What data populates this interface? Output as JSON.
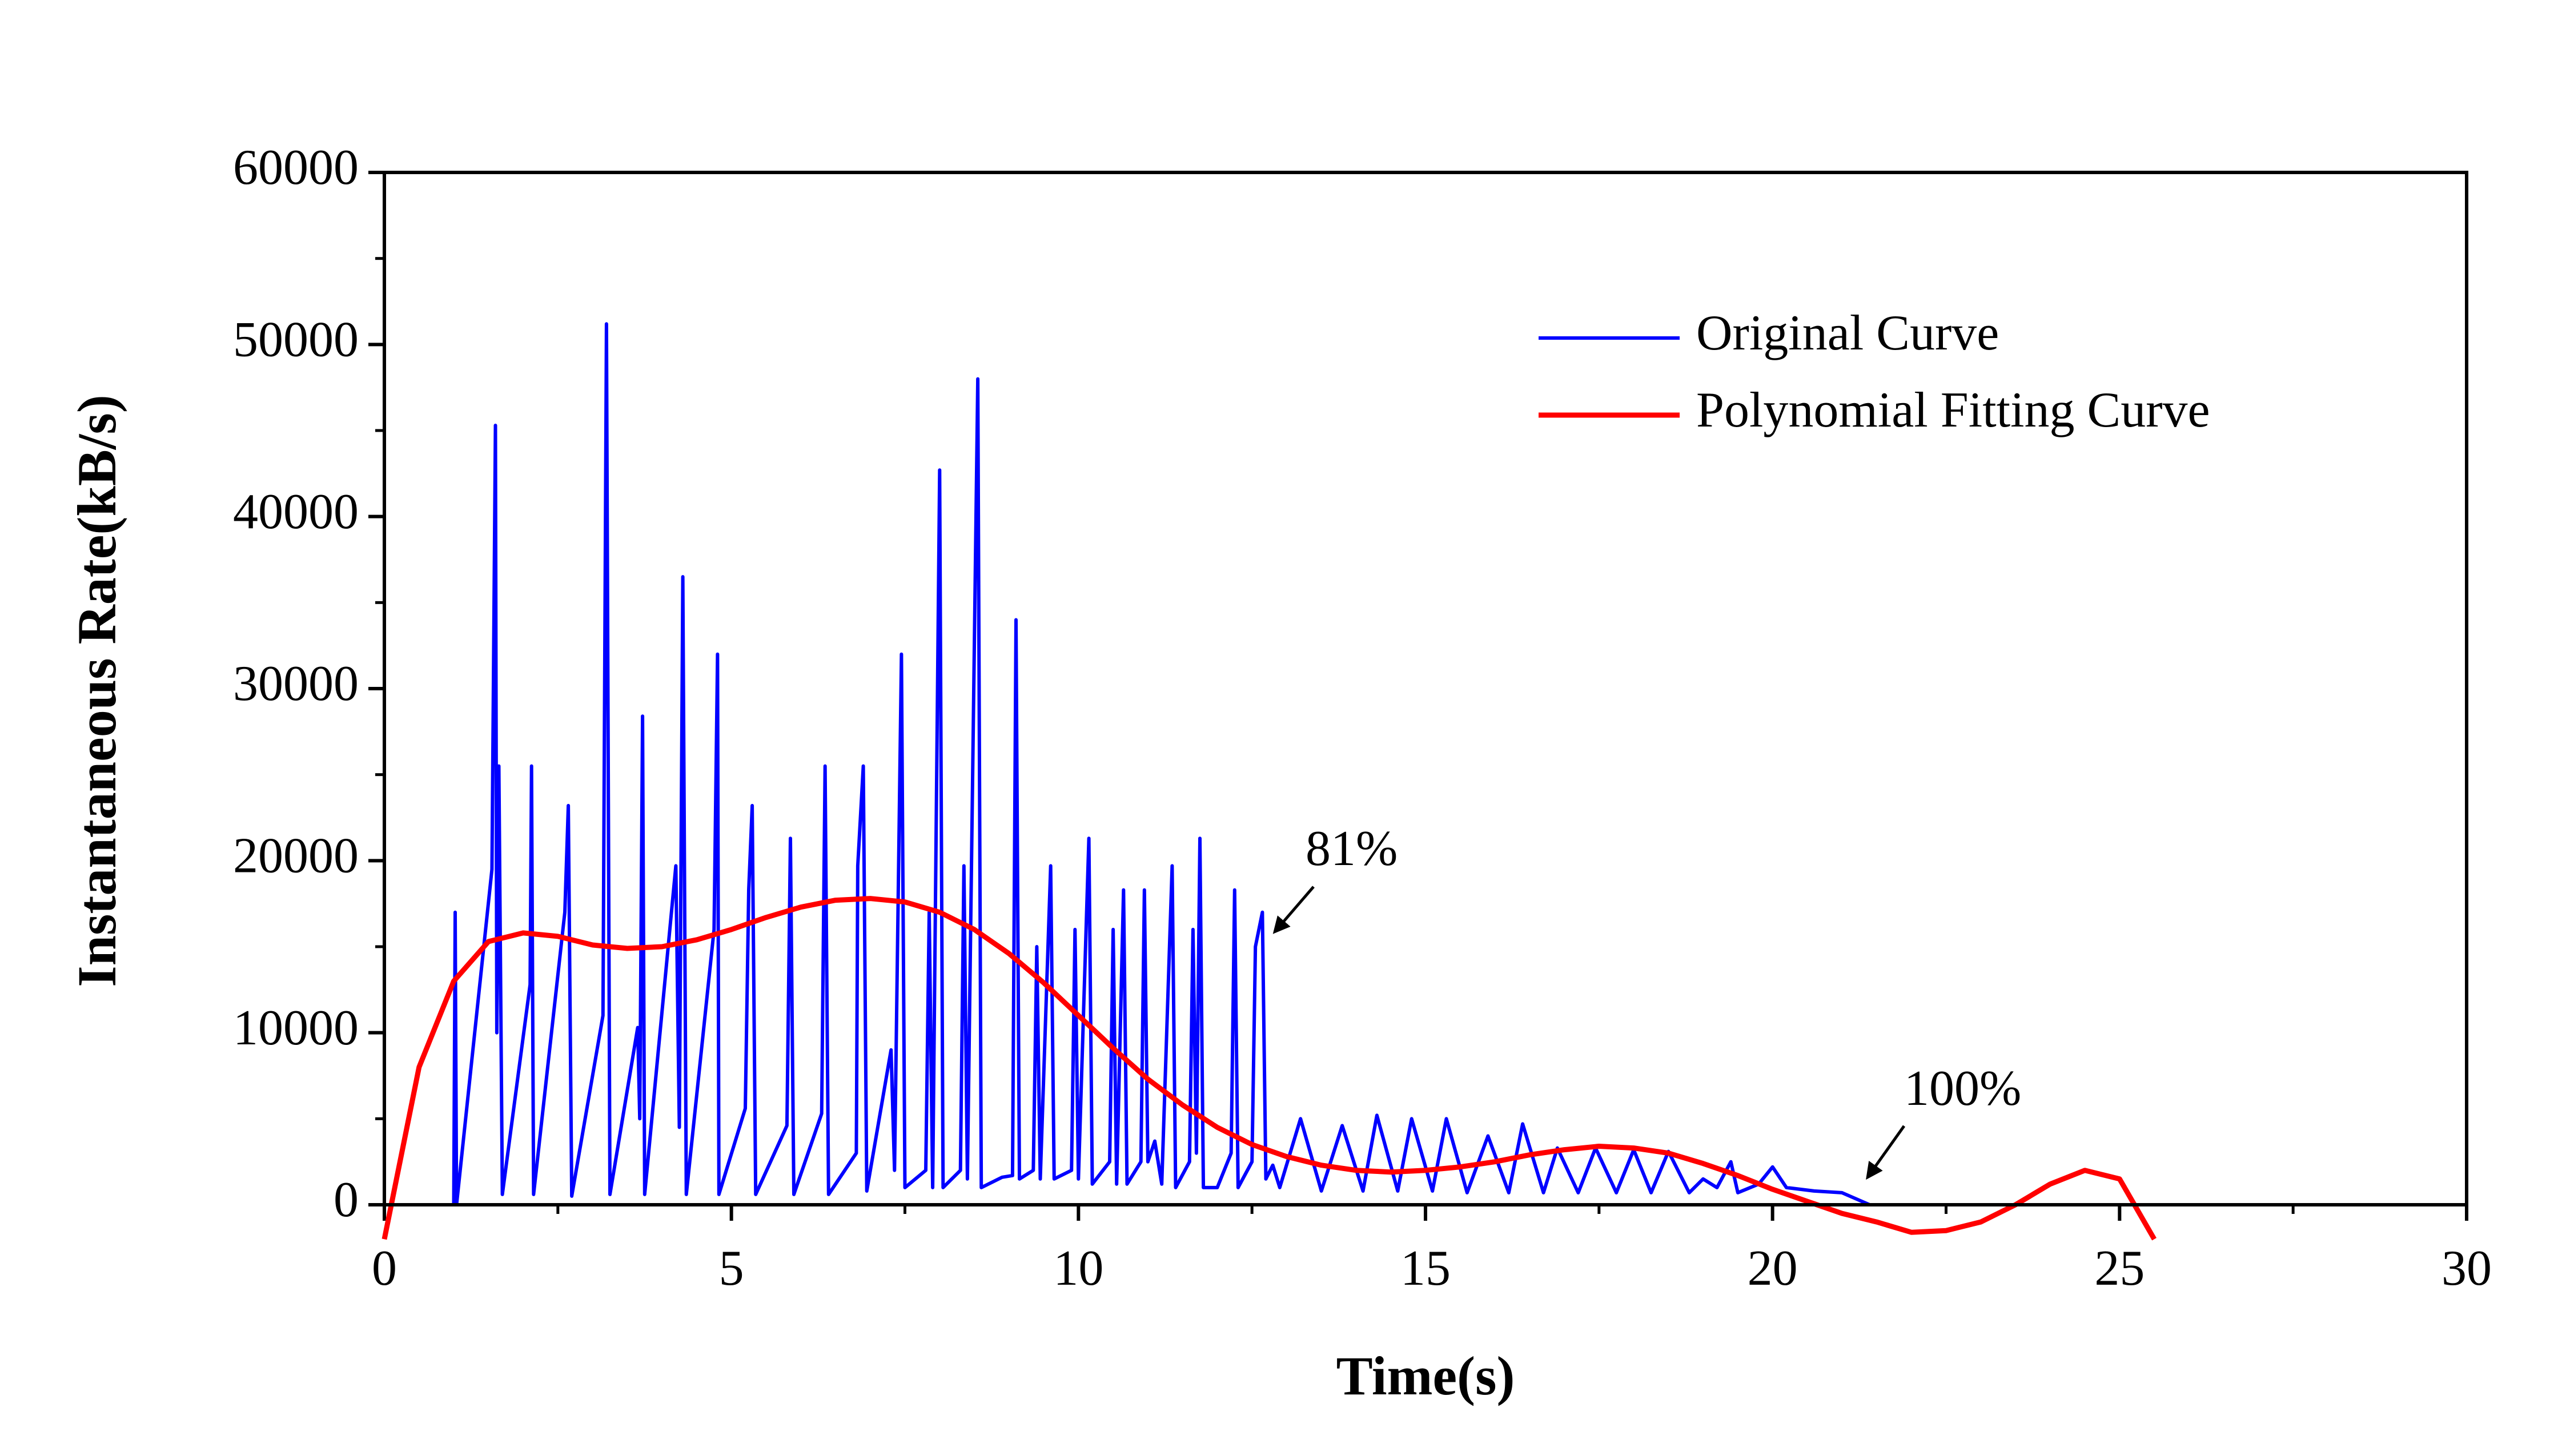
{
  "chart_data": {
    "type": "line",
    "xlabel": "Time(s)",
    "ylabel": "Instantaneous Rate(kB/s)",
    "xlim": [
      0,
      30
    ],
    "ylim": [
      0,
      60000
    ],
    "xticks": [
      0,
      5,
      10,
      15,
      20,
      25,
      30
    ],
    "yticks": [
      0,
      10000,
      20000,
      30000,
      40000,
      50000,
      60000
    ],
    "legend": "upper right",
    "annotations": [
      "81%",
      "100%"
    ],
    "series": [
      {
        "name": "Original Curve",
        "color": "#0000ff",
        "x": [
          0,
          1.0,
          1.02,
          1.04,
          1.55,
          1.6,
          1.62,
          1.65,
          1.7,
          2.1,
          2.12,
          2.15,
          2.6,
          2.65,
          2.7,
          3.15,
          3.2,
          3.25,
          3.65,
          3.68,
          3.72,
          3.75,
          4.2,
          4.25,
          4.3,
          4.35,
          4.75,
          4.8,
          4.82,
          5.2,
          5.25,
          5.3,
          5.35,
          5.8,
          5.85,
          5.9,
          6.3,
          6.35,
          6.4,
          6.8,
          6.82,
          6.9,
          6.95,
          7.3,
          7.35,
          7.45,
          7.5,
          7.8,
          7.85,
          7.9,
          8.0,
          8.05,
          8.3,
          8.35,
          8.4,
          8.55,
          8.6,
          8.9,
          9.05,
          9.1,
          9.15,
          9.35,
          9.4,
          9.45,
          9.6,
          9.65,
          9.9,
          9.95,
          10.0,
          10.15,
          10.2,
          10.45,
          10.5,
          10.55,
          10.65,
          10.7,
          10.9,
          10.95,
          11.0,
          11.1,
          11.2,
          11.35,
          11.4,
          11.6,
          11.65,
          11.7,
          11.75,
          11.8,
          12.0,
          12.2,
          12.25,
          12.3,
          12.5,
          12.55,
          12.65,
          12.7,
          12.8,
          12.9,
          13.2,
          13.5,
          13.8,
          14.1,
          14.3,
          14.6,
          14.8,
          15.1,
          15.3,
          15.6,
          15.9,
          16.2,
          16.4,
          16.7,
          16.9,
          17.2,
          17.45,
          17.75,
          18.0,
          18.25,
          18.5,
          18.8,
          19.0,
          19.2,
          19.4,
          19.5,
          19.8,
          20.0,
          20.2,
          20.6,
          21.0,
          21.4,
          25.3
        ],
        "values": [
          0,
          0,
          17000,
          0,
          19500,
          45300,
          10000,
          25500,
          600,
          12800,
          25500,
          600,
          17000,
          23200,
          500,
          11000,
          51200,
          600,
          10300,
          5000,
          28400,
          600,
          19700,
          4500,
          36500,
          600,
          16000,
          32000,
          600,
          5600,
          18300,
          23200,
          600,
          4600,
          21300,
          600,
          5300,
          25500,
          600,
          3000,
          19700,
          25500,
          800,
          9000,
          2000,
          32000,
          1000,
          2000,
          17000,
          1000,
          42700,
          1000,
          2000,
          19700,
          1500,
          48000,
          1000,
          1600,
          1700,
          34000,
          1500,
          2000,
          15000,
          1500,
          19700,
          1500,
          2000,
          16000,
          1500,
          21300,
          1200,
          2500,
          16000,
          1200,
          18300,
          1200,
          2500,
          18300,
          2500,
          3700,
          1200,
          19700,
          1000,
          2500,
          16000,
          3000,
          21300,
          1000,
          1000,
          3000,
          18300,
          1000,
          2500,
          15000,
          17000,
          1500,
          2300,
          1000,
          5000,
          800,
          4600,
          800,
          5200,
          800,
          5000,
          800,
          5000,
          700,
          4000,
          700,
          4700,
          700,
          3300,
          700,
          3300,
          700,
          3200,
          700,
          3100,
          700,
          1500,
          1000,
          2500,
          700,
          1200,
          2200,
          1000,
          800,
          700,
          0,
          0
        ]
      },
      {
        "name": "Polynomial Fitting Curve",
        "color": "#ff0000",
        "x": [
          0,
          0.5,
          1,
          1.5,
          2,
          2.5,
          3,
          3.5,
          4,
          4.5,
          5,
          5.5,
          6,
          6.5,
          7,
          7.5,
          8,
          8.5,
          9,
          9.5,
          10,
          10.5,
          11,
          11.5,
          12,
          12.5,
          13,
          13.5,
          14,
          14.5,
          15,
          15.5,
          16,
          16.5,
          17,
          17.5,
          18,
          18.5,
          19,
          19.5,
          20,
          20.5,
          21,
          21.5,
          22,
          22.5,
          23,
          23.5,
          24,
          24.5,
          25,
          25.5
        ],
        "values": [
          -2000,
          8000,
          13000,
          15300,
          15800,
          15600,
          15100,
          14900,
          15000,
          15400,
          16000,
          16700,
          17300,
          17700,
          17800,
          17600,
          17000,
          16000,
          14600,
          12900,
          11000,
          9100,
          7300,
          5800,
          4500,
          3500,
          2800,
          2300,
          2000,
          1900,
          2000,
          2200,
          2500,
          2900,
          3200,
          3400,
          3300,
          3000,
          2400,
          1700,
          900,
          200,
          -500,
          -1000,
          -1600,
          -1500,
          -1000,
          0,
          1200,
          2000,
          1500,
          -2000
        ]
      }
    ]
  }
}
